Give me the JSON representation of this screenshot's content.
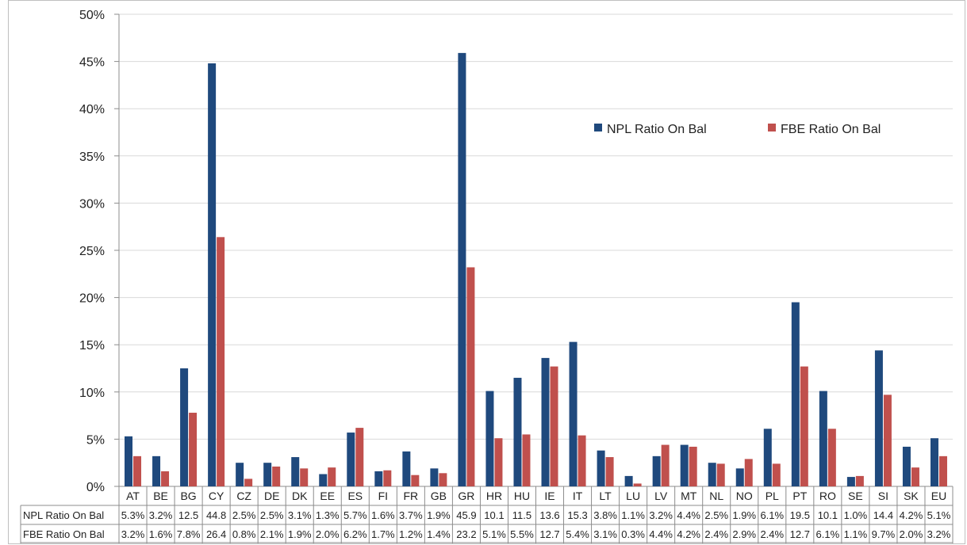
{
  "chart_data": {
    "type": "bar",
    "categories": [
      "AT",
      "BE",
      "BG",
      "CY",
      "CZ",
      "DE",
      "DK",
      "EE",
      "ES",
      "FI",
      "FR",
      "GB",
      "GR",
      "HR",
      "HU",
      "IE",
      "IT",
      "LT",
      "LU",
      "LV",
      "MT",
      "NL",
      "NO",
      "PL",
      "PT",
      "RO",
      "SE",
      "SI",
      "SK",
      "EU"
    ],
    "series": [
      {
        "name": "NPL Ratio On Bal",
        "color": "#1F497D",
        "values": [
          5.3,
          3.2,
          12.5,
          44.8,
          2.5,
          2.5,
          3.1,
          1.3,
          5.7,
          1.6,
          3.7,
          1.9,
          45.9,
          10.1,
          11.5,
          13.6,
          15.3,
          3.8,
          1.1,
          3.2,
          4.4,
          2.5,
          1.9,
          6.1,
          19.5,
          10.1,
          1.0,
          14.4,
          4.2,
          5.1
        ],
        "labels": [
          "5.3%",
          "3.2%",
          "12.5",
          "44.8",
          "2.5%",
          "2.5%",
          "3.1%",
          "1.3%",
          "5.7%",
          "1.6%",
          "3.7%",
          "1.9%",
          "45.9",
          "10.1",
          "11.5",
          "13.6",
          "15.3",
          "3.8%",
          "1.1%",
          "3.2%",
          "4.4%",
          "2.5%",
          "1.9%",
          "6.1%",
          "19.5",
          "10.1",
          "1.0%",
          "14.4",
          "4.2%",
          "5.1%"
        ]
      },
      {
        "name": "FBE Ratio On Bal",
        "color": "#C0504D",
        "values": [
          3.2,
          1.6,
          7.8,
          26.4,
          0.8,
          2.1,
          1.9,
          2.0,
          6.2,
          1.7,
          1.2,
          1.4,
          23.2,
          5.1,
          5.5,
          12.7,
          5.4,
          3.1,
          0.3,
          4.4,
          4.2,
          2.4,
          2.9,
          2.4,
          12.7,
          6.1,
          1.1,
          9.7,
          2.0,
          3.2
        ],
        "labels": [
          "3.2%",
          "1.6%",
          "7.8%",
          "26.4",
          "0.8%",
          "2.1%",
          "1.9%",
          "2.0%",
          "6.2%",
          "1.7%",
          "1.2%",
          "1.4%",
          "23.2",
          "5.1%",
          "5.5%",
          "12.7",
          "5.4%",
          "3.1%",
          "0.3%",
          "4.4%",
          "4.2%",
          "2.4%",
          "2.9%",
          "2.4%",
          "12.7",
          "6.1%",
          "1.1%",
          "9.7%",
          "2.0%",
          "3.2%"
        ]
      }
    ],
    "y_ticks": [
      "0%",
      "5%",
      "10%",
      "15%",
      "20%",
      "25%",
      "30%",
      "35%",
      "40%",
      "45%",
      "50%"
    ],
    "ylim": [
      0,
      50
    ],
    "grid": true,
    "legend_position": "upper-right",
    "data_table": true,
    "title": "",
    "xlabel": "",
    "ylabel": ""
  }
}
